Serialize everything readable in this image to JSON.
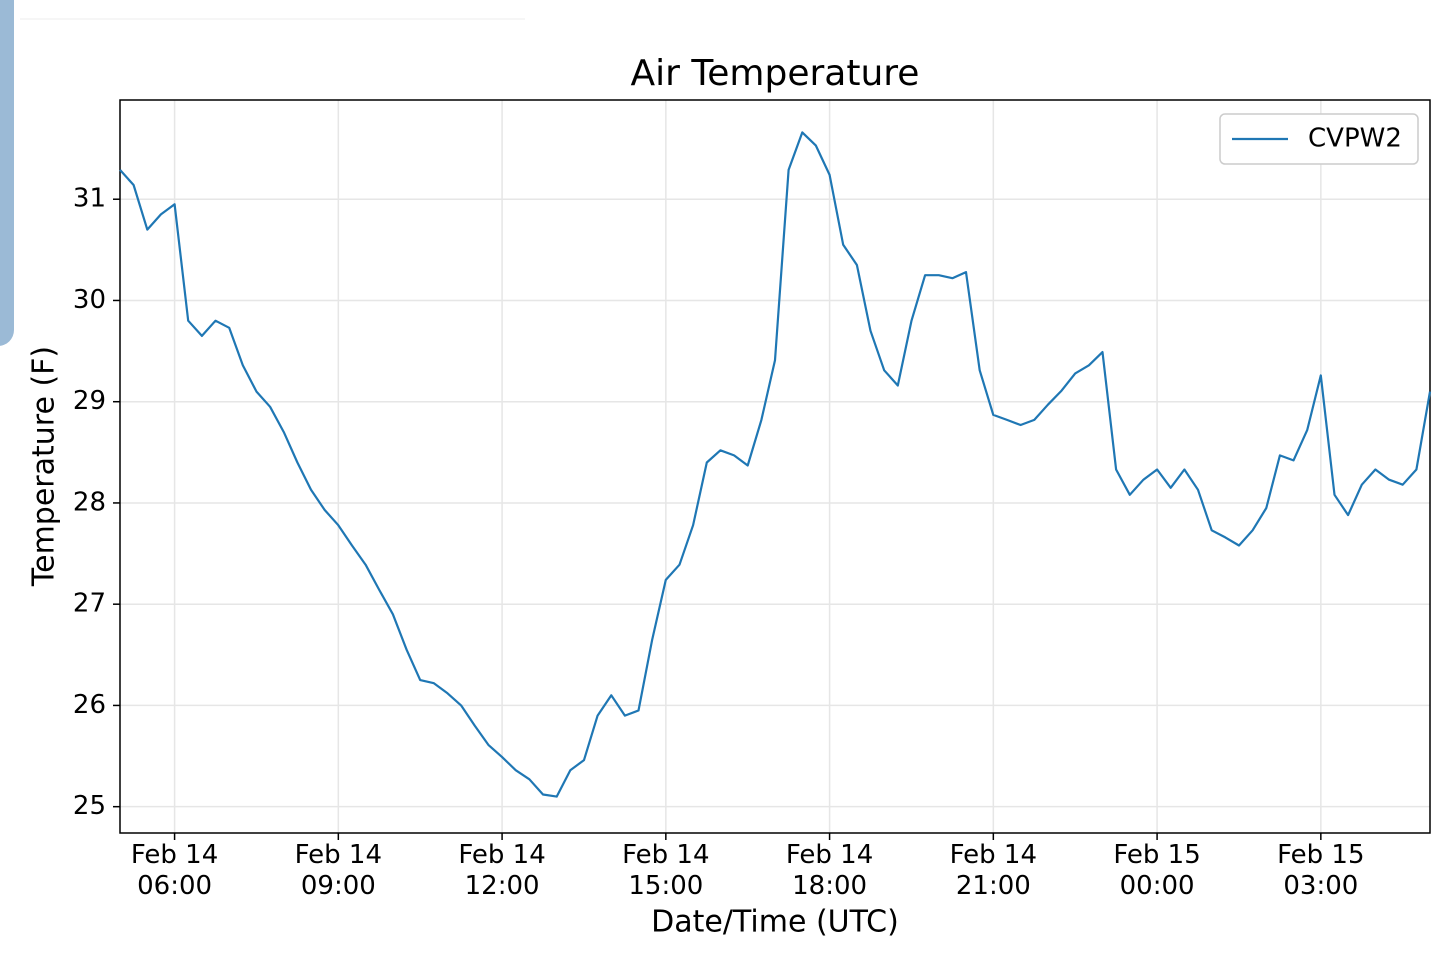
{
  "chart_data": {
    "type": "line",
    "title": "Air Temperature",
    "x_label": "Date/Time (UTC)",
    "y_label": "Temperature (F)",
    "x": [
      "Feb 14 05:00",
      "Feb 14 05:15",
      "Feb 14 05:30",
      "Feb 14 05:45",
      "Feb 14 06:00",
      "Feb 14 06:15",
      "Feb 14 06:30",
      "Feb 14 06:45",
      "Feb 14 07:00",
      "Feb 14 07:15",
      "Feb 14 07:30",
      "Feb 14 07:45",
      "Feb 14 08:00",
      "Feb 14 08:15",
      "Feb 14 08:30",
      "Feb 14 08:45",
      "Feb 14 09:00",
      "Feb 14 09:15",
      "Feb 14 09:30",
      "Feb 14 09:45",
      "Feb 14 10:00",
      "Feb 14 10:15",
      "Feb 14 10:30",
      "Feb 14 10:45",
      "Feb 14 11:00",
      "Feb 14 11:15",
      "Feb 14 11:30",
      "Feb 14 11:45",
      "Feb 14 12:00",
      "Feb 14 12:15",
      "Feb 14 12:30",
      "Feb 14 12:45",
      "Feb 14 13:00",
      "Feb 14 13:15",
      "Feb 14 13:30",
      "Feb 14 13:45",
      "Feb 14 14:00",
      "Feb 14 14:15",
      "Feb 14 14:30",
      "Feb 14 14:45",
      "Feb 14 15:00",
      "Feb 14 15:15",
      "Feb 14 15:30",
      "Feb 14 15:45",
      "Feb 14 16:00",
      "Feb 14 16:15",
      "Feb 14 16:30",
      "Feb 14 16:45",
      "Feb 14 17:00",
      "Feb 14 17:15",
      "Feb 14 17:30",
      "Feb 14 17:45",
      "Feb 14 18:00",
      "Feb 14 18:15",
      "Feb 14 18:30",
      "Feb 14 18:45",
      "Feb 14 19:00",
      "Feb 14 19:15",
      "Feb 14 19:30",
      "Feb 14 19:45",
      "Feb 14 20:00",
      "Feb 14 20:15",
      "Feb 14 20:30",
      "Feb 14 20:45",
      "Feb 14 21:00",
      "Feb 14 21:15",
      "Feb 14 21:30",
      "Feb 14 21:45",
      "Feb 14 22:00",
      "Feb 14 22:15",
      "Feb 14 22:30",
      "Feb 14 22:45",
      "Feb 14 23:00",
      "Feb 14 23:15",
      "Feb 14 23:30",
      "Feb 14 23:45",
      "Feb 15 00:00",
      "Feb 15 00:15",
      "Feb 15 00:30",
      "Feb 15 00:45",
      "Feb 15 01:00",
      "Feb 15 01:15",
      "Feb 15 01:30",
      "Feb 15 01:45",
      "Feb 15 02:00",
      "Feb 15 02:15",
      "Feb 15 02:30",
      "Feb 15 02:45",
      "Feb 15 03:00",
      "Feb 15 03:15",
      "Feb 15 03:30",
      "Feb 15 03:45",
      "Feb 15 04:00",
      "Feb 15 04:15",
      "Feb 15 04:30",
      "Feb 15 04:45",
      "Feb 15 05:00"
    ],
    "series": [
      {
        "name": "CVPW2",
        "color": "#1f77b4",
        "values": [
          31.29,
          31.14,
          30.7,
          30.85,
          30.95,
          29.8,
          29.65,
          29.8,
          29.73,
          29.36,
          29.1,
          28.95,
          28.7,
          28.4,
          28.13,
          27.93,
          27.78,
          27.58,
          27.39,
          27.14,
          26.9,
          26.55,
          26.25,
          26.22,
          26.12,
          26.0,
          25.8,
          25.61,
          25.49,
          25.36,
          25.27,
          25.12,
          25.1,
          25.36,
          25.46,
          25.9,
          26.1,
          25.9,
          25.95,
          26.65,
          27.24,
          27.39,
          27.78,
          28.4,
          28.52,
          28.47,
          28.37,
          28.82,
          29.41,
          31.29,
          31.66,
          31.53,
          31.24,
          30.55,
          30.35,
          29.7,
          29.31,
          29.16,
          29.8,
          30.25,
          30.25,
          30.22,
          30.28,
          29.31,
          28.87,
          28.82,
          28.77,
          28.82,
          28.97,
          29.11,
          29.28,
          29.36,
          29.49,
          28.33,
          28.08,
          28.23,
          28.33,
          28.15,
          28.33,
          28.13,
          27.73,
          27.66,
          27.58,
          27.73,
          27.95,
          28.47,
          28.42,
          28.72,
          29.26,
          28.08,
          27.88,
          28.18,
          28.33,
          28.23,
          28.18,
          28.33,
          29.1
        ]
      }
    ],
    "xlim": [
      "Feb 14 05:00",
      "Feb 15 05:00"
    ],
    "xticks": [
      {
        "value": "Feb 14 06:00",
        "label": "Feb 14\n06:00"
      },
      {
        "value": "Feb 14 09:00",
        "label": "Feb 14\n09:00"
      },
      {
        "value": "Feb 14 12:00",
        "label": "Feb 14\n12:00"
      },
      {
        "value": "Feb 14 15:00",
        "label": "Feb 14\n15:00"
      },
      {
        "value": "Feb 14 18:00",
        "label": "Feb 14\n18:00"
      },
      {
        "value": "Feb 14 21:00",
        "label": "Feb 14\n21:00"
      },
      {
        "value": "Feb 15 00:00",
        "label": "Feb 15\n00:00"
      },
      {
        "value": "Feb 15 03:00",
        "label": "Feb 15\n03:00"
      }
    ],
    "ylim": [
      24.74,
      31.98
    ],
    "yticks": [
      25,
      26,
      27,
      28,
      29,
      30,
      31
    ],
    "grid": true,
    "legend": "upper right"
  }
}
